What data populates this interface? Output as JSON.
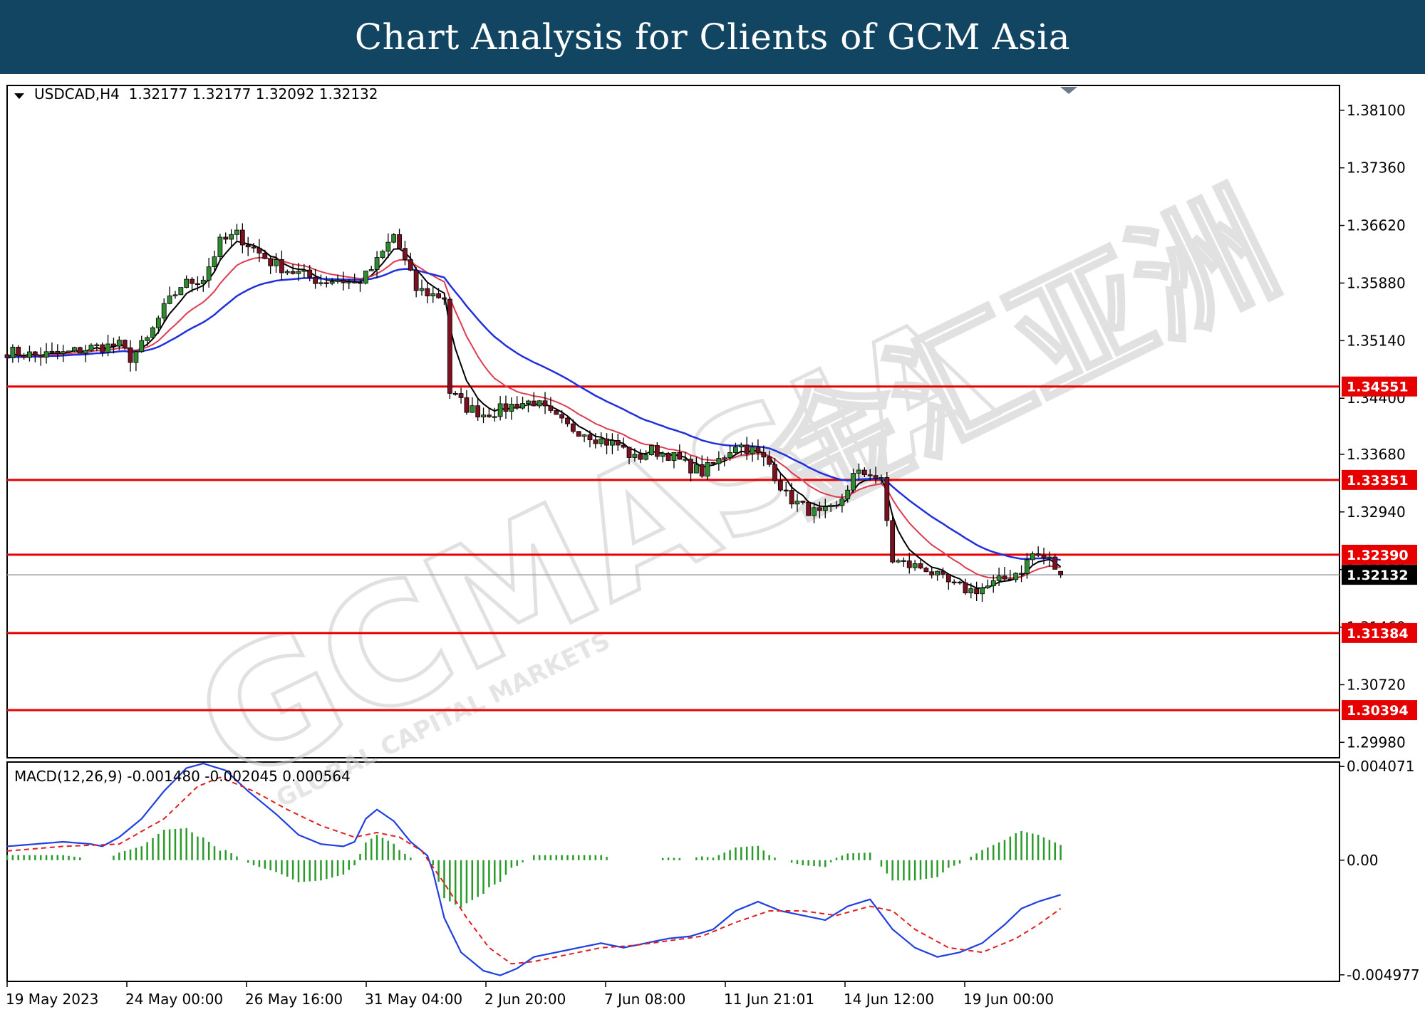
{
  "banner": {
    "title": "Chart Analysis for Clients of GCM Asia"
  },
  "colors": {
    "banner_bg": "#114561",
    "candle_up": "#2e8b2e",
    "candle_down": "#7a1020",
    "ma_fast": "#000000",
    "ma_mid": "#dc3c50",
    "ma_slow": "#2030dc",
    "level_line": "#e60000",
    "macd_line": "#1f3fe0",
    "signal_line": "#e02020",
    "histogram": "#2a9a2a",
    "bid_line": "#9aa0a6"
  },
  "symbol_header": {
    "menu_icon": "triangle-down-icon",
    "text": "USDCAD,H4  1.32177 1.32177 1.32092 1.32132"
  },
  "price_axis": {
    "range": [
      1.298,
      1.384
    ],
    "ticks": [
      "1.38100",
      "1.37360",
      "1.36620",
      "1.35880",
      "1.35140",
      "1.34400",
      "1.33680",
      "1.32940",
      "1.32200",
      "1.31460",
      "1.30720",
      "1.29980"
    ]
  },
  "levels": [
    {
      "label": "1.34551",
      "value": 1.34551
    },
    {
      "label": "1.33351",
      "value": 1.33351
    },
    {
      "label": "1.32390",
      "value": 1.3239
    },
    {
      "label": "1.31384",
      "value": 1.31384
    },
    {
      "label": "1.30394",
      "value": 1.30394
    }
  ],
  "current_price": {
    "label": "1.32132",
    "value": 1.32132
  },
  "macd": {
    "header": "MACD(12,26,9) -0.001480 -0.002045 0.000564",
    "range": [
      -0.0052,
      0.0042
    ],
    "ticks": [
      "0.004071",
      "0.00",
      "-0.004977"
    ]
  },
  "time_axis": {
    "labels": [
      "19 May 2023",
      "24 May 00:00",
      "26 May 16:00",
      "31 May 04:00",
      "2 Jun 20:00",
      "7 Jun 08:00",
      "11 Jun 21:01",
      "14 Jun 12:00",
      "19 Jun 00:00"
    ]
  },
  "watermark": {
    "main": "GCMASIA",
    "sub": "GLOBAL CAPITAL MARKETS",
    "cjk": "金汇亚洲"
  },
  "chart_data": {
    "type": "candlestick",
    "symbol": "USDCAD",
    "timeframe": "H4",
    "ohlc_last": {
      "open": 1.32177,
      "high": 1.32177,
      "low": 1.32092,
      "close": 1.32132
    },
    "close_path": [
      [
        0,
        1.35
      ],
      [
        5,
        1.3495
      ],
      [
        10,
        1.3497
      ],
      [
        15,
        1.3505
      ],
      [
        20,
        1.3508
      ],
      [
        22,
        1.3492
      ],
      [
        25,
        1.3515
      ],
      [
        28,
        1.3555
      ],
      [
        31,
        1.3585
      ],
      [
        35,
        1.3595
      ],
      [
        38,
        1.364
      ],
      [
        41,
        1.365
      ],
      [
        44,
        1.3632
      ],
      [
        47,
        1.3615
      ],
      [
        50,
        1.3605
      ],
      [
        53,
        1.3598
      ],
      [
        56,
        1.359
      ],
      [
        59,
        1.3593
      ],
      [
        62,
        1.3587
      ],
      [
        64,
        1.3597
      ],
      [
        66,
        1.3615
      ],
      [
        69,
        1.365
      ],
      [
        71,
        1.3615
      ],
      [
        73,
        1.358
      ],
      [
        76,
        1.3573
      ],
      [
        78,
        1.357
      ],
      [
        79,
        1.3448
      ],
      [
        82,
        1.3428
      ],
      [
        85,
        1.342
      ],
      [
        88,
        1.3425
      ],
      [
        91,
        1.3433
      ],
      [
        94,
        1.3436
      ],
      [
        97,
        1.3418
      ],
      [
        100,
        1.3403
      ],
      [
        103,
        1.3397
      ],
      [
        106,
        1.3386
      ],
      [
        109,
        1.338
      ],
      [
        112,
        1.3362
      ],
      [
        115,
        1.3373
      ],
      [
        118,
        1.3368
      ],
      [
        121,
        1.3355
      ],
      [
        124,
        1.3345
      ],
      [
        127,
        1.336
      ],
      [
        130,
        1.3382
      ],
      [
        133,
        1.3373
      ],
      [
        136,
        1.3355
      ],
      [
        139,
        1.3315
      ],
      [
        142,
        1.33
      ],
      [
        145,
        1.329
      ],
      [
        148,
        1.3298
      ],
      [
        151,
        1.334
      ],
      [
        154,
        1.3345
      ],
      [
        156,
        1.3332
      ],
      [
        158,
        1.3232
      ],
      [
        161,
        1.3225
      ],
      [
        164,
        1.3222
      ],
      [
        166,
        1.321
      ],
      [
        169,
        1.3198
      ],
      [
        172,
        1.3193
      ],
      [
        175,
        1.3198
      ],
      [
        178,
        1.3208
      ],
      [
        181,
        1.322
      ],
      [
        183,
        1.324
      ],
      [
        186,
        1.3232
      ],
      [
        188,
        1.3213
      ]
    ],
    "macd_main_path": [
      [
        0,
        0.0006
      ],
      [
        5,
        0.0007
      ],
      [
        10,
        0.0008
      ],
      [
        15,
        0.0007
      ],
      [
        17,
        0.0006
      ],
      [
        20,
        0.001
      ],
      [
        24,
        0.0018
      ],
      [
        28,
        0.003
      ],
      [
        32,
        0.004
      ],
      [
        35,
        0.0042
      ],
      [
        39,
        0.0039
      ],
      [
        43,
        0.003
      ],
      [
        48,
        0.002
      ],
      [
        52,
        0.0011
      ],
      [
        56,
        0.0007
      ],
      [
        60,
        0.0006
      ],
      [
        62,
        0.0008
      ],
      [
        64,
        0.0018
      ],
      [
        66,
        0.0022
      ],
      [
        69,
        0.0017
      ],
      [
        72,
        0.0008
      ],
      [
        75,
        0.0002
      ],
      [
        76,
        -0.0005
      ],
      [
        78,
        -0.0025
      ],
      [
        81,
        -0.004
      ],
      [
        85,
        -0.0048
      ],
      [
        88,
        -0.005
      ],
      [
        91,
        -0.0047
      ],
      [
        94,
        -0.0042
      ],
      [
        98,
        -0.004
      ],
      [
        102,
        -0.0038
      ],
      [
        106,
        -0.0036
      ],
      [
        110,
        -0.0038
      ],
      [
        114,
        -0.0036
      ],
      [
        118,
        -0.0034
      ],
      [
        122,
        -0.0033
      ],
      [
        126,
        -0.003
      ],
      [
        130,
        -0.0022
      ],
      [
        134,
        -0.0018
      ],
      [
        138,
        -0.0022
      ],
      [
        142,
        -0.0024
      ],
      [
        146,
        -0.0026
      ],
      [
        150,
        -0.002
      ],
      [
        154,
        -0.0017
      ],
      [
        158,
        -0.003
      ],
      [
        162,
        -0.0038
      ],
      [
        166,
        -0.0042
      ],
      [
        170,
        -0.004
      ],
      [
        174,
        -0.0036
      ],
      [
        178,
        -0.0028
      ],
      [
        181,
        -0.0021
      ],
      [
        184,
        -0.0018
      ],
      [
        188,
        -0.0015
      ]
    ],
    "macd_signal_path": [
      [
        0,
        0.0004
      ],
      [
        10,
        0.0006
      ],
      [
        20,
        0.0007
      ],
      [
        28,
        0.0018
      ],
      [
        34,
        0.0032
      ],
      [
        38,
        0.0036
      ],
      [
        44,
        0.003
      ],
      [
        50,
        0.0022
      ],
      [
        56,
        0.0015
      ],
      [
        62,
        0.001
      ],
      [
        66,
        0.0012
      ],
      [
        70,
        0.001
      ],
      [
        74,
        0.0004
      ],
      [
        78,
        -0.001
      ],
      [
        82,
        -0.0025
      ],
      [
        86,
        -0.0038
      ],
      [
        90,
        -0.0045
      ],
      [
        94,
        -0.0044
      ],
      [
        100,
        -0.0041
      ],
      [
        106,
        -0.0038
      ],
      [
        112,
        -0.0037
      ],
      [
        118,
        -0.0035
      ],
      [
        124,
        -0.0033
      ],
      [
        130,
        -0.0027
      ],
      [
        136,
        -0.0022
      ],
      [
        142,
        -0.0022
      ],
      [
        148,
        -0.0024
      ],
      [
        154,
        -0.002
      ],
      [
        158,
        -0.0022
      ],
      [
        162,
        -0.003
      ],
      [
        168,
        -0.0038
      ],
      [
        174,
        -0.004
      ],
      [
        180,
        -0.0034
      ],
      [
        184,
        -0.0028
      ],
      [
        188,
        -0.0021
      ]
    ]
  }
}
